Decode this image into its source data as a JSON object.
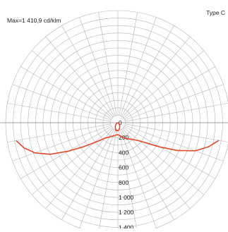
{
  "header": {
    "max_label": "Max=1 410,9 cd/klm",
    "type_label": "Type C"
  },
  "chart_data": {
    "type": "line",
    "polar": true,
    "ring_step": 100,
    "r_max": 1500,
    "spoke_step_deg": 10,
    "radial_ticks": [
      "0",
      "200",
      "400",
      "600",
      "800",
      "1 000",
      "1 200",
      "1 400"
    ],
    "radial_tick_values": [
      0,
      200,
      400,
      600,
      800,
      1000,
      1200,
      1400
    ],
    "line_color": "#e2482a",
    "grid_color": "#b4b4b4",
    "series": [
      {
        "values": [
          {
            "angle": -86,
            "r": 0
          },
          {
            "angle": -80,
            "r": 3
          },
          {
            "angle": -70,
            "r": 6
          },
          {
            "angle": -60,
            "r": 15
          },
          {
            "angle": -50,
            "r": 30
          },
          {
            "angle": -40,
            "r": 50
          },
          {
            "angle": -30,
            "r": 70
          },
          {
            "angle": -20,
            "r": 90
          },
          {
            "angle": -12,
            "r": 110
          },
          {
            "angle": -6,
            "r": 100
          },
          {
            "angle": 0,
            "r": 110
          },
          {
            "angle": 10,
            "r": 90
          },
          {
            "angle": 20,
            "r": 70
          },
          {
            "angle": 30,
            "r": 50
          },
          {
            "angle": 40,
            "r": 30
          },
          {
            "angle": 50,
            "r": 15
          },
          {
            "angle": 60,
            "r": 8
          },
          {
            "angle": 70,
            "r": 4
          },
          {
            "angle": 80,
            "r": 2
          },
          {
            "angle": 86,
            "r": 0
          }
        ]
      },
      {
        "values": [
          {
            "angle": -80,
            "r": 1380
          },
          {
            "angle": -75,
            "r": 1300
          },
          {
            "angle": -70,
            "r": 1180
          },
          {
            "angle": -65,
            "r": 1000
          },
          {
            "angle": -60,
            "r": 760
          },
          {
            "angle": -55,
            "r": 560
          },
          {
            "angle": -50,
            "r": 420
          },
          {
            "angle": -45,
            "r": 330
          },
          {
            "angle": -40,
            "r": 270
          },
          {
            "angle": -30,
            "r": 220
          },
          {
            "angle": -20,
            "r": 190
          },
          {
            "angle": -10,
            "r": 170
          },
          {
            "angle": 0,
            "r": 160
          },
          {
            "angle": 10,
            "r": 180
          },
          {
            "angle": 20,
            "r": 210
          },
          {
            "angle": 30,
            "r": 250
          },
          {
            "angle": 40,
            "r": 290
          },
          {
            "angle": 50,
            "r": 380
          },
          {
            "angle": 55,
            "r": 480
          },
          {
            "angle": 60,
            "r": 650
          },
          {
            "angle": 65,
            "r": 880
          },
          {
            "angle": 70,
            "r": 1100
          },
          {
            "angle": 75,
            "r": 1250
          },
          {
            "angle": 80,
            "r": 1370
          }
        ]
      }
    ]
  }
}
